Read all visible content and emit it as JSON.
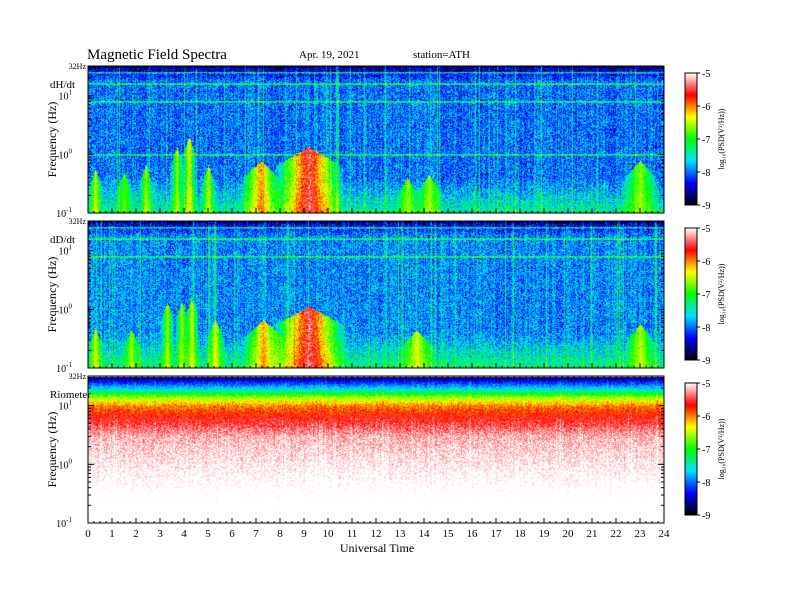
{
  "header": {
    "title": "Magnetic  Field  Spectra",
    "date": "Apr. 19, 2021",
    "station": "station=ATH"
  },
  "chart_data": {
    "type": "heatmap",
    "xlabel": "Universal Time",
    "x_range": [
      0,
      24
    ],
    "x_ticks": [
      "0",
      "1",
      "2",
      "3",
      "4",
      "5",
      "6",
      "7",
      "8",
      "9",
      "10",
      "11",
      "12",
      "13",
      "14",
      "15",
      "16",
      "17",
      "18",
      "19",
      "20",
      "21",
      "22",
      "23",
      "24"
    ],
    "colorscale": [
      "#000000",
      "#0000ff",
      "#00e0ff",
      "#00ff00",
      "#ffff00",
      "#ff0000",
      "#ffffff"
    ],
    "panels": [
      {
        "label": "dH/dt",
        "ylabel": "Frequency  (Hz)",
        "yscale": "log",
        "ylim": [
          0.1,
          32
        ],
        "y_top_label": "32Hz",
        "y_ticks": [
          {
            "base": "10",
            "exp": "1"
          },
          {
            "base": "10",
            "exp": "0"
          },
          {
            "base": "10",
            "exp": "-1"
          }
        ],
        "colorbar": {
          "label": "log₁₀(PSD(V²/Hz))",
          "ticks": [
            "-5",
            "-6",
            "-7",
            "-8",
            "-9"
          ],
          "range": [
            -9,
            -5
          ]
        },
        "background_log_psd": -8.0,
        "line_freqs_hz": [
          1,
          8,
          16,
          25
        ],
        "bursts": [
          {
            "t": 0.3,
            "f": 0.25,
            "width_h": 0.3,
            "strength": -6.2
          },
          {
            "t": 1.5,
            "f": 0.22,
            "width_h": 0.4,
            "strength": -6.6
          },
          {
            "t": 2.4,
            "f": 0.3,
            "width_h": 0.3,
            "strength": -6.3
          },
          {
            "t": 3.7,
            "f": 0.6,
            "width_h": 0.3,
            "strength": -6.3
          },
          {
            "t": 4.2,
            "f": 0.9,
            "width_h": 0.3,
            "strength": -6.0
          },
          {
            "t": 5.0,
            "f": 0.3,
            "width_h": 0.3,
            "strength": -6.2
          },
          {
            "t": 7.2,
            "f": 0.35,
            "width_h": 0.9,
            "strength": -5.7
          },
          {
            "t": 9.2,
            "f": 0.6,
            "width_h": 1.5,
            "strength": -5.0
          },
          {
            "t": 13.3,
            "f": 0.18,
            "width_h": 0.5,
            "strength": -6.4
          },
          {
            "t": 14.2,
            "f": 0.2,
            "width_h": 0.6,
            "strength": -6.4
          },
          {
            "t": 23.0,
            "f": 0.35,
            "width_h": 0.8,
            "strength": -6.4
          }
        ]
      },
      {
        "label": "dD/dt",
        "ylabel": "Frequency  (Hz)",
        "yscale": "log",
        "ylim": [
          0.1,
          32
        ],
        "y_top_label": "32Hz",
        "y_ticks": [
          {
            "base": "10",
            "exp": "1"
          },
          {
            "base": "10",
            "exp": "0"
          },
          {
            "base": "10",
            "exp": "-1"
          }
        ],
        "colorbar": {
          "label": "log₁₀(PSD(V²/Hz))",
          "ticks": [
            "-5",
            "-6",
            "-7",
            "-8",
            "-9"
          ],
          "range": [
            -9,
            -5
          ]
        },
        "background_log_psd": -7.9,
        "line_freqs_hz": [
          8,
          16,
          25
        ],
        "bursts": [
          {
            "t": 0.3,
            "f": 0.22,
            "width_h": 0.3,
            "strength": -6.2
          },
          {
            "t": 1.8,
            "f": 0.2,
            "width_h": 0.4,
            "strength": -6.4
          },
          {
            "t": 3.3,
            "f": 0.6,
            "width_h": 0.3,
            "strength": -6.3
          },
          {
            "t": 3.9,
            "f": 0.6,
            "width_h": 0.3,
            "strength": -6.3
          },
          {
            "t": 4.3,
            "f": 0.7,
            "width_h": 0.3,
            "strength": -6.2
          },
          {
            "t": 5.3,
            "f": 0.3,
            "width_h": 0.4,
            "strength": -6.2
          },
          {
            "t": 7.3,
            "f": 0.3,
            "width_h": 0.9,
            "strength": -5.8
          },
          {
            "t": 9.2,
            "f": 0.5,
            "width_h": 1.6,
            "strength": -5.0
          },
          {
            "t": 13.7,
            "f": 0.2,
            "width_h": 0.8,
            "strength": -6.2
          },
          {
            "t": 23.0,
            "f": 0.25,
            "width_h": 0.7,
            "strength": -6.3
          }
        ]
      },
      {
        "label": "Riometer",
        "ylabel": "Frequency  (Hz)",
        "yscale": "log",
        "ylim": [
          0.1,
          32
        ],
        "y_top_label": "32Hz",
        "y_ticks": [
          {
            "base": "10",
            "exp": "1"
          },
          {
            "base": "10",
            "exp": "0"
          },
          {
            "base": "10",
            "exp": "-1"
          }
        ],
        "colorbar": {
          "label": "log₁₀(PSD(V²/Hz))",
          "ticks": [
            "-5",
            "-6",
            "-7",
            "-8",
            "-9"
          ],
          "range": [
            -9,
            -5
          ]
        },
        "profile": [
          {
            "f": 32,
            "v": -8.8
          },
          {
            "f": 25,
            "v": -8.2
          },
          {
            "f": 18,
            "v": -7.4
          },
          {
            "f": 14,
            "v": -6.6
          },
          {
            "f": 10,
            "v": -6.0
          },
          {
            "f": 6,
            "v": -5.6
          },
          {
            "f": 3,
            "v": -5.2
          },
          {
            "f": 0.1,
            "v": -4.6
          }
        ]
      }
    ]
  }
}
